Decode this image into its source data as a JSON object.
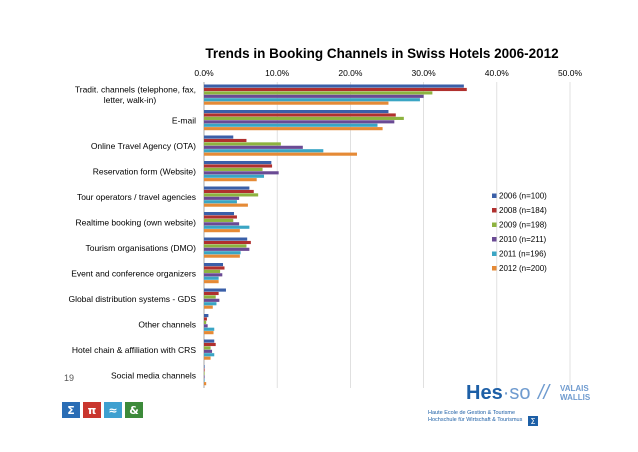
{
  "chart_data": {
    "type": "bar",
    "orientation": "horizontal",
    "title": "Trends in Booking Channels in Swiss Hotels 2006-2012",
    "x_ticks": [
      "0.0%",
      "10.0%",
      "20.0%",
      "30.0%",
      "40.0%",
      "50.0%"
    ],
    "xlim": [
      0,
      50
    ],
    "grid": true,
    "legend_position": "right",
    "categories": [
      [
        "Tradit. channels (telephone, fax,",
        "letter, walk-in)"
      ],
      [
        "E-mail"
      ],
      [
        "Online Travel Agency (OTA)"
      ],
      [
        "Reservation form (Website)"
      ],
      [
        "Tour operators / travel agencies"
      ],
      [
        "Realtime booking (own website)"
      ],
      [
        "Tourism organisations (DMO)"
      ],
      [
        "Event and conference organizers"
      ],
      [
        "Global distribution systems - GDS"
      ],
      [
        "Other channels"
      ],
      [
        "Hotel chain & affiliation with CRS"
      ],
      [
        "Social media channels"
      ]
    ],
    "series": [
      {
        "name": "2006 (n=100)",
        "color": "#3a5fa8",
        "values": [
          35.5,
          25.2,
          4.0,
          9.2,
          6.2,
          4.1,
          5.9,
          2.6,
          3.0,
          0.6,
          1.4,
          0.0
        ]
      },
      {
        "name": "2008 (n=184)",
        "color": "#b0302e",
        "values": [
          35.9,
          26.2,
          5.8,
          9.3,
          6.8,
          4.5,
          6.4,
          2.8,
          2.0,
          0.4,
          1.6,
          0.0
        ]
      },
      {
        "name": "2009 (n=198)",
        "color": "#8db33f",
        "values": [
          31.2,
          27.3,
          10.5,
          8.0,
          7.4,
          4.0,
          5.8,
          2.2,
          1.6,
          0.3,
          0.9,
          0.0
        ]
      },
      {
        "name": "2010 (n=211)",
        "color": "#6a4a94",
        "values": [
          30.0,
          26.0,
          13.5,
          10.2,
          4.8,
          4.8,
          6.2,
          2.5,
          2.1,
          0.5,
          1.1,
          0.0
        ]
      },
      {
        "name": "2011 (n=196)",
        "color": "#3aa5c4",
        "values": [
          29.5,
          23.7,
          16.3,
          8.2,
          4.5,
          6.2,
          5.0,
          2.0,
          1.7,
          1.4,
          1.4,
          0.0
        ]
      },
      {
        "name": "2012 (n=200)",
        "color": "#e58a36",
        "values": [
          25.2,
          24.4,
          20.9,
          7.2,
          6.0,
          4.9,
          4.9,
          2.0,
          1.2,
          1.3,
          0.9,
          0.3
        ]
      }
    ]
  },
  "slide_number": "19",
  "footer_icons": [
    {
      "glyph": "Σ",
      "color": "#2a6db5"
    },
    {
      "glyph": "π",
      "color": "#c9362e"
    },
    {
      "glyph": "≈",
      "color": "#3ea0d0"
    },
    {
      "glyph": "&",
      "color": "#3c8a3a"
    }
  ],
  "logo": {
    "hes": "Hes",
    "so": "·so",
    "slash": "//",
    "region_line1": "VALAIS",
    "region_line2": "WALLIS",
    "sub_line1": "Haute Ecole de Gestion & Tourisme",
    "sub_line2": "Hochschule für Wirtschaft & Tourismus",
    "sigma": "Σ"
  }
}
